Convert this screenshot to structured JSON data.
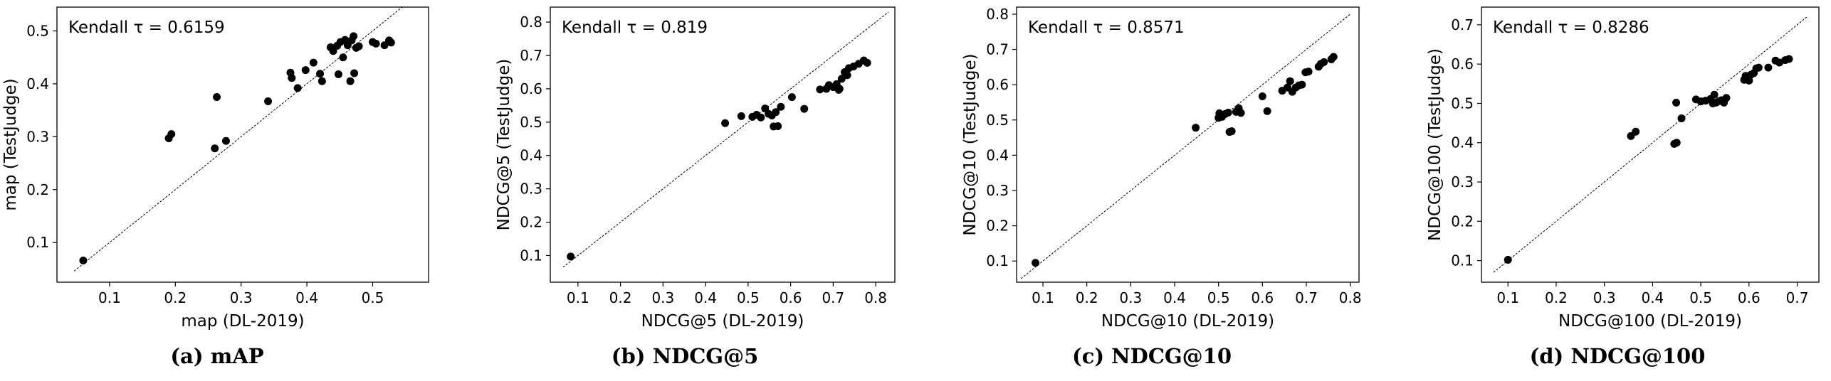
{
  "chart_data": [
    {
      "type": "scatter",
      "caption": "(a) mAP",
      "annotation": "Kendall τ = 0.6159",
      "xlabel": "map (DL-2019)",
      "ylabel": "map (TestJudge)",
      "xlim": [
        0.02,
        0.585
      ],
      "ylim": [
        0.025,
        0.545
      ],
      "xticks": [
        0.1,
        0.2,
        0.3,
        0.4,
        0.5
      ],
      "yticks": [
        0.1,
        0.2,
        0.3,
        0.4,
        0.5
      ],
      "tick_labels_x": [
        "0.1",
        "0.2",
        "0.3",
        "0.4",
        "0.5"
      ],
      "tick_labels_y": [
        "0.1",
        "0.2",
        "0.3",
        "0.4",
        "0.5"
      ],
      "diagonal": [
        0.046,
        0.545
      ],
      "points": [
        [
          0.06,
          0.066
        ],
        [
          0.19,
          0.297
        ],
        [
          0.194,
          0.305
        ],
        [
          0.26,
          0.278
        ],
        [
          0.263,
          0.375
        ],
        [
          0.277,
          0.292
        ],
        [
          0.341,
          0.367
        ],
        [
          0.375,
          0.421
        ],
        [
          0.377,
          0.411
        ],
        [
          0.386,
          0.392
        ],
        [
          0.398,
          0.426
        ],
        [
          0.41,
          0.44
        ],
        [
          0.42,
          0.419
        ],
        [
          0.423,
          0.405
        ],
        [
          0.436,
          0.469
        ],
        [
          0.44,
          0.462
        ],
        [
          0.446,
          0.472
        ],
        [
          0.448,
          0.418
        ],
        [
          0.451,
          0.479
        ],
        [
          0.455,
          0.45
        ],
        [
          0.458,
          0.483
        ],
        [
          0.462,
          0.473
        ],
        [
          0.466,
          0.405
        ],
        [
          0.468,
          0.482
        ],
        [
          0.471,
          0.49
        ],
        [
          0.472,
          0.42
        ],
        [
          0.475,
          0.468
        ],
        [
          0.479,
          0.471
        ],
        [
          0.5,
          0.479
        ],
        [
          0.505,
          0.476
        ],
        [
          0.518,
          0.473
        ],
        [
          0.525,
          0.482
        ],
        [
          0.528,
          0.478
        ]
      ]
    },
    {
      "type": "scatter",
      "caption": "(b) NDCG@5",
      "annotation": "Kendall τ = 0.819",
      "xlabel": "NDCG@5 (DL-2019)",
      "ylabel": "NDCG@5 (TestJudge)",
      "xlim": [
        0.035,
        0.845
      ],
      "ylim": [
        0.02,
        0.845
      ],
      "xticks": [
        0.1,
        0.2,
        0.3,
        0.4,
        0.5,
        0.6,
        0.7,
        0.8
      ],
      "yticks": [
        0.1,
        0.2,
        0.3,
        0.4,
        0.5,
        0.6,
        0.7,
        0.8
      ],
      "tick_labels_x": [
        "0.1",
        "0.2",
        "0.3",
        "0.4",
        "0.5",
        "0.6",
        "0.7",
        "0.8"
      ],
      "tick_labels_y": [
        "0.1",
        "0.2",
        "0.3",
        "0.4",
        "0.5",
        "0.6",
        "0.7",
        "0.8"
      ],
      "diagonal": [
        0.065,
        0.83
      ],
      "points": [
        [
          0.083,
          0.097
        ],
        [
          0.446,
          0.497
        ],
        [
          0.484,
          0.518
        ],
        [
          0.51,
          0.516
        ],
        [
          0.52,
          0.522
        ],
        [
          0.53,
          0.514
        ],
        [
          0.54,
          0.541
        ],
        [
          0.548,
          0.525
        ],
        [
          0.556,
          0.52
        ],
        [
          0.56,
          0.487
        ],
        [
          0.565,
          0.53
        ],
        [
          0.57,
          0.488
        ],
        [
          0.577,
          0.546
        ],
        [
          0.603,
          0.575
        ],
        [
          0.632,
          0.54
        ],
        [
          0.669,
          0.598
        ],
        [
          0.684,
          0.6
        ],
        [
          0.69,
          0.611
        ],
        [
          0.7,
          0.605
        ],
        [
          0.708,
          0.614
        ],
        [
          0.713,
          0.597
        ],
        [
          0.715,
          0.6
        ],
        [
          0.72,
          0.63
        ],
        [
          0.727,
          0.65
        ],
        [
          0.733,
          0.641
        ],
        [
          0.737,
          0.662
        ],
        [
          0.748,
          0.667
        ],
        [
          0.76,
          0.675
        ],
        [
          0.772,
          0.685
        ],
        [
          0.78,
          0.678
        ]
      ]
    },
    {
      "type": "scatter",
      "caption": "(c) NDCG@10",
      "annotation": "Kendall τ = 0.8571",
      "xlabel": "NDCG@10 (DL-2019)",
      "ylabel": "NDCG@10 (TestJudge)",
      "xlim": [
        0.04,
        0.82
      ],
      "ylim": [
        0.04,
        0.82
      ],
      "xticks": [
        0.1,
        0.2,
        0.3,
        0.4,
        0.5,
        0.6,
        0.7,
        0.8
      ],
      "yticks": [
        0.1,
        0.2,
        0.3,
        0.4,
        0.5,
        0.6,
        0.7,
        0.8
      ],
      "tick_labels_x": [
        "0.1",
        "0.2",
        "0.3",
        "0.4",
        "0.5",
        "0.6",
        "0.7",
        "0.8"
      ],
      "tick_labels_y": [
        "0.1",
        "0.2",
        "0.3",
        "0.4",
        "0.5",
        "0.6",
        "0.7",
        "0.8"
      ],
      "diagonal": [
        0.05,
        0.8
      ],
      "points": [
        [
          0.083,
          0.095
        ],
        [
          0.448,
          0.478
        ],
        [
          0.5,
          0.506
        ],
        [
          0.502,
          0.519
        ],
        [
          0.508,
          0.509
        ],
        [
          0.515,
          0.517
        ],
        [
          0.522,
          0.521
        ],
        [
          0.525,
          0.466
        ],
        [
          0.53,
          0.468
        ],
        [
          0.54,
          0.523
        ],
        [
          0.546,
          0.533
        ],
        [
          0.551,
          0.52
        ],
        [
          0.6,
          0.567
        ],
        [
          0.611,
          0.525
        ],
        [
          0.645,
          0.583
        ],
        [
          0.657,
          0.592
        ],
        [
          0.663,
          0.61
        ],
        [
          0.668,
          0.58
        ],
        [
          0.676,
          0.592
        ],
        [
          0.683,
          0.598
        ],
        [
          0.69,
          0.6
        ],
        [
          0.698,
          0.635
        ],
        [
          0.705,
          0.637
        ],
        [
          0.728,
          0.651
        ],
        [
          0.733,
          0.659
        ],
        [
          0.74,
          0.664
        ],
        [
          0.757,
          0.672
        ],
        [
          0.762,
          0.679
        ]
      ]
    },
    {
      "type": "scatter",
      "caption": "(d) NDCG@100",
      "annotation": "Kendall τ = 0.8286",
      "xlabel": "NDCG@100 (DL-2019)",
      "ylabel": "NDCG@100 (TestJudge)",
      "xlim": [
        0.045,
        0.745
      ],
      "ylim": [
        0.045,
        0.745
      ],
      "xticks": [
        0.1,
        0.2,
        0.3,
        0.4,
        0.5,
        0.6,
        0.7
      ],
      "yticks": [
        0.1,
        0.2,
        0.3,
        0.4,
        0.5,
        0.6,
        0.7
      ],
      "tick_labels_x": [
        "0.1",
        "0.2",
        "0.3",
        "0.4",
        "0.5",
        "0.6",
        "0.7"
      ],
      "tick_labels_y": [
        "0.1",
        "0.2",
        "0.3",
        "0.4",
        "0.5",
        "0.6",
        "0.7"
      ],
      "diagonal": [
        0.07,
        0.72
      ],
      "points": [
        [
          0.1,
          0.102
        ],
        [
          0.355,
          0.417
        ],
        [
          0.365,
          0.428
        ],
        [
          0.445,
          0.397
        ],
        [
          0.449,
          0.502
        ],
        [
          0.45,
          0.4
        ],
        [
          0.46,
          0.462
        ],
        [
          0.49,
          0.51
        ],
        [
          0.5,
          0.505
        ],
        [
          0.51,
          0.507
        ],
        [
          0.52,
          0.511
        ],
        [
          0.525,
          0.5
        ],
        [
          0.528,
          0.522
        ],
        [
          0.532,
          0.502
        ],
        [
          0.538,
          0.506
        ],
        [
          0.543,
          0.508
        ],
        [
          0.548,
          0.502
        ],
        [
          0.553,
          0.514
        ],
        [
          0.59,
          0.56
        ],
        [
          0.593,
          0.57
        ],
        [
          0.6,
          0.558
        ],
        [
          0.604,
          0.573
        ],
        [
          0.61,
          0.577
        ],
        [
          0.615,
          0.589
        ],
        [
          0.62,
          0.591
        ],
        [
          0.64,
          0.591
        ],
        [
          0.655,
          0.609
        ],
        [
          0.663,
          0.604
        ],
        [
          0.675,
          0.61
        ],
        [
          0.683,
          0.613
        ]
      ]
    }
  ]
}
